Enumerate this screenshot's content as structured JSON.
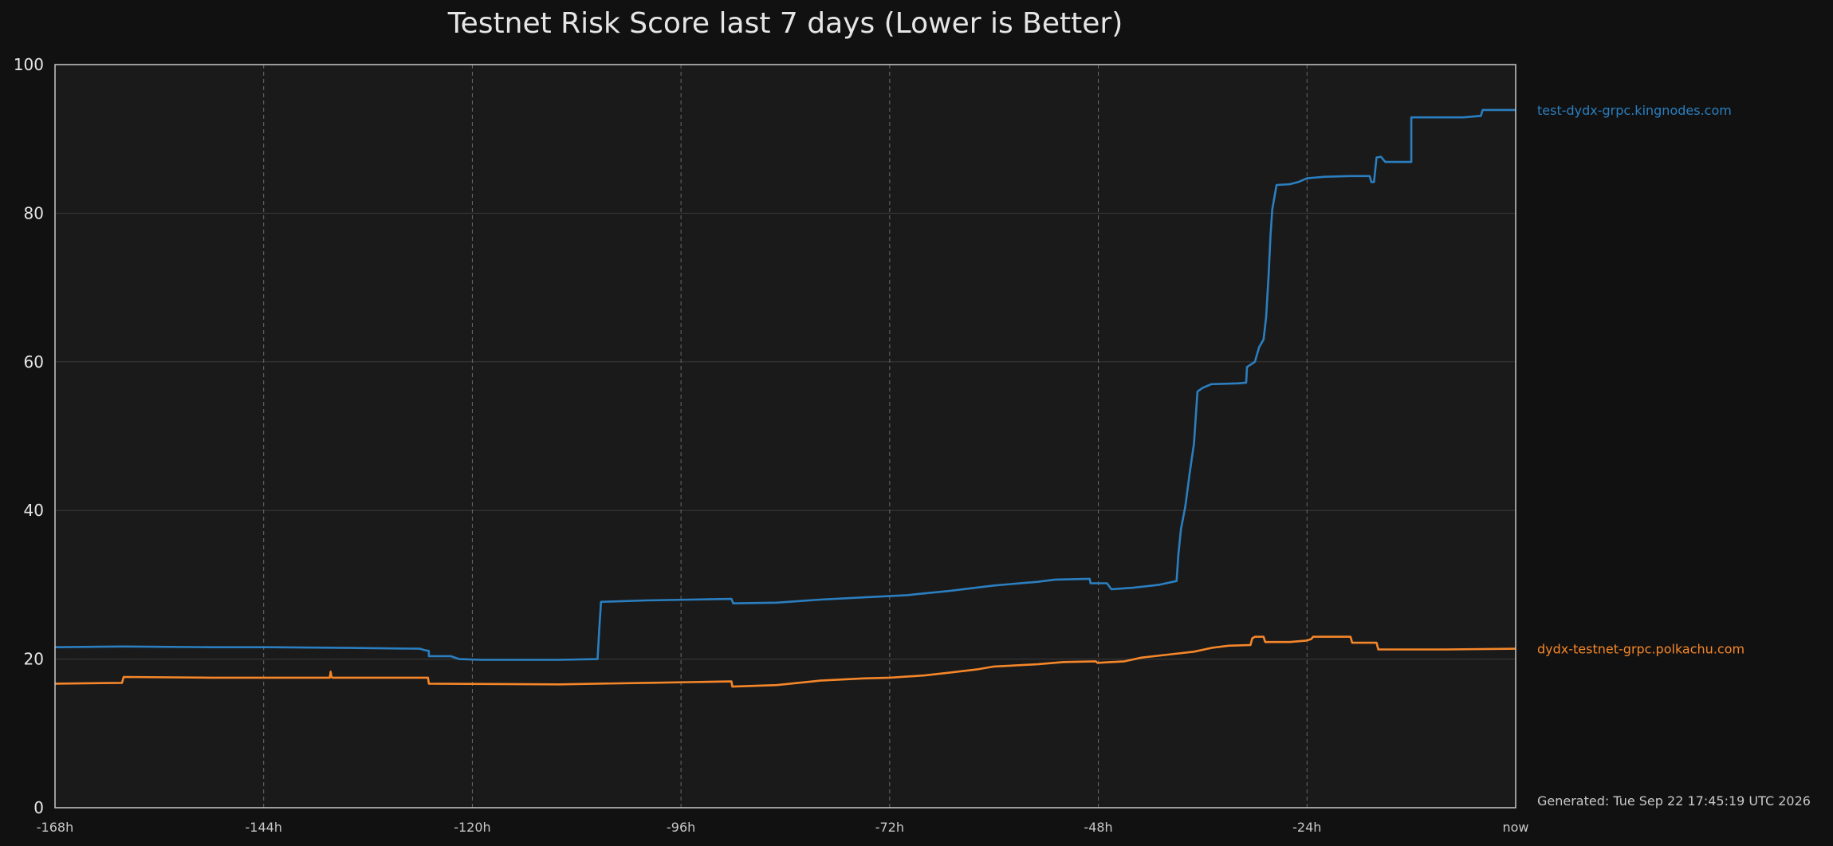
{
  "chart_data": {
    "type": "line",
    "title": "Testnet Risk Score last 7 days (Lower is Better)",
    "xlabel": "",
    "ylabel": "",
    "xlim": [
      -168,
      0
    ],
    "ylim": [
      0,
      100
    ],
    "x_ticks": [
      -168,
      -144,
      -120,
      -96,
      -72,
      -48,
      -24,
      0
    ],
    "x_tick_labels": [
      "-168h",
      "-144h",
      "-120h",
      "-96h",
      "-72h",
      "-48h",
      "-24h",
      "now"
    ],
    "y_ticks": [
      0,
      20,
      40,
      60,
      80,
      100
    ],
    "y_tick_labels": [
      "0",
      "20",
      "40",
      "60",
      "80",
      "100"
    ],
    "grid": {
      "x": "dashed",
      "y": "solid"
    },
    "legend": "right, inline labels at line ends",
    "footer": "Generated: Tue Sep 22 17:45:19 UTC 2026",
    "series": [
      {
        "name": "test-dydx-grpc.kingnodes.com",
        "color": "#2b7fc0",
        "points": [
          [
            -168,
            21.6
          ],
          [
            -160,
            21.7
          ],
          [
            -150,
            21.6
          ],
          [
            -143,
            21.6
          ],
          [
            -134,
            21.5
          ],
          [
            -126,
            21.4
          ],
          [
            -125.5,
            21.2
          ],
          [
            -125,
            21.1
          ],
          [
            -125,
            20.4
          ],
          [
            -122.5,
            20.4
          ],
          [
            -121.5,
            20.0
          ],
          [
            -119,
            19.9
          ],
          [
            -110,
            19.9
          ],
          [
            -105.6,
            20.0
          ],
          [
            -105.4,
            24.0
          ],
          [
            -105.2,
            27.7
          ],
          [
            -100,
            27.9
          ],
          [
            -95,
            28.0
          ],
          [
            -90.2,
            28.1
          ],
          [
            -90,
            27.5
          ],
          [
            -85,
            27.6
          ],
          [
            -80,
            28.0
          ],
          [
            -75,
            28.3
          ],
          [
            -70,
            28.6
          ],
          [
            -65,
            29.2
          ],
          [
            -60,
            29.9
          ],
          [
            -55,
            30.4
          ],
          [
            -53,
            30.7
          ],
          [
            -49,
            30.8
          ],
          [
            -48.9,
            30.2
          ],
          [
            -47,
            30.2
          ],
          [
            -46.5,
            29.4
          ],
          [
            -44,
            29.6
          ],
          [
            -41,
            30.0
          ],
          [
            -39,
            30.5
          ],
          [
            -38.8,
            34
          ],
          [
            -38.5,
            37.5
          ],
          [
            -38,
            40.5
          ],
          [
            -37.5,
            45
          ],
          [
            -37,
            49
          ],
          [
            -36.6,
            56.0
          ],
          [
            -36,
            56.5
          ],
          [
            -35,
            57.0
          ],
          [
            -32,
            57.1
          ],
          [
            -31,
            57.2
          ],
          [
            -30.9,
            59.3
          ],
          [
            -30,
            60.0
          ],
          [
            -29.5,
            62
          ],
          [
            -29,
            63
          ],
          [
            -28.7,
            66
          ],
          [
            -28.4,
            72
          ],
          [
            -28.2,
            77
          ],
          [
            -28,
            80.5
          ],
          [
            -27.5,
            83.8
          ],
          [
            -26,
            83.9
          ],
          [
            -25,
            84.2
          ],
          [
            -24,
            84.7
          ],
          [
            -22,
            84.9
          ],
          [
            -19,
            85.0
          ],
          [
            -16.8,
            85.0
          ],
          [
            -16.6,
            84.2
          ],
          [
            -16.3,
            84.2
          ],
          [
            -16,
            87.5
          ],
          [
            -15.5,
            87.6
          ],
          [
            -15,
            86.9
          ],
          [
            -12,
            86.9
          ],
          [
            -12,
            92.9
          ],
          [
            -6,
            92.9
          ],
          [
            -4,
            93.1
          ],
          [
            -3.8,
            93.9
          ],
          [
            0,
            93.9
          ]
        ]
      },
      {
        "name": "dydx-testnet-grpc.polkachu.com",
        "color": "#f5872a",
        "points": [
          [
            -168,
            16.7
          ],
          [
            -160.3,
            16.8
          ],
          [
            -160.1,
            17.6
          ],
          [
            -150,
            17.5
          ],
          [
            -138.5,
            17.5
          ],
          [
            -136.4,
            17.5
          ],
          [
            -136.3,
            18.3
          ],
          [
            -136.2,
            17.6
          ],
          [
            -136.1,
            17.5
          ],
          [
            -126,
            17.5
          ],
          [
            -125.1,
            17.5
          ],
          [
            -125,
            16.7
          ],
          [
            -110,
            16.6
          ],
          [
            -100,
            16.8
          ],
          [
            -95,
            16.9
          ],
          [
            -90.2,
            17.0
          ],
          [
            -90.1,
            16.3
          ],
          [
            -85,
            16.5
          ],
          [
            -80,
            17.1
          ],
          [
            -75,
            17.4
          ],
          [
            -72,
            17.5
          ],
          [
            -68,
            17.8
          ],
          [
            -65,
            18.2
          ],
          [
            -62,
            18.6
          ],
          [
            -60,
            19.0
          ],
          [
            -55,
            19.3
          ],
          [
            -52,
            19.6
          ],
          [
            -48.3,
            19.7
          ],
          [
            -48.1,
            19.5
          ],
          [
            -45,
            19.7
          ],
          [
            -43,
            20.2
          ],
          [
            -40,
            20.6
          ],
          [
            -37,
            21.0
          ],
          [
            -35,
            21.5
          ],
          [
            -33,
            21.8
          ],
          [
            -30.5,
            21.9
          ],
          [
            -30.3,
            22.8
          ],
          [
            -30,
            23.0
          ],
          [
            -29,
            23.0
          ],
          [
            -28.8,
            22.3
          ],
          [
            -26,
            22.3
          ],
          [
            -24,
            22.5
          ],
          [
            -23.5,
            22.7
          ],
          [
            -23.3,
            23.0
          ],
          [
            -19,
            23.0
          ],
          [
            -18.8,
            22.2
          ],
          [
            -16,
            22.2
          ],
          [
            -15.8,
            21.3
          ],
          [
            -8,
            21.3
          ],
          [
            0,
            21.4
          ]
        ]
      }
    ]
  }
}
